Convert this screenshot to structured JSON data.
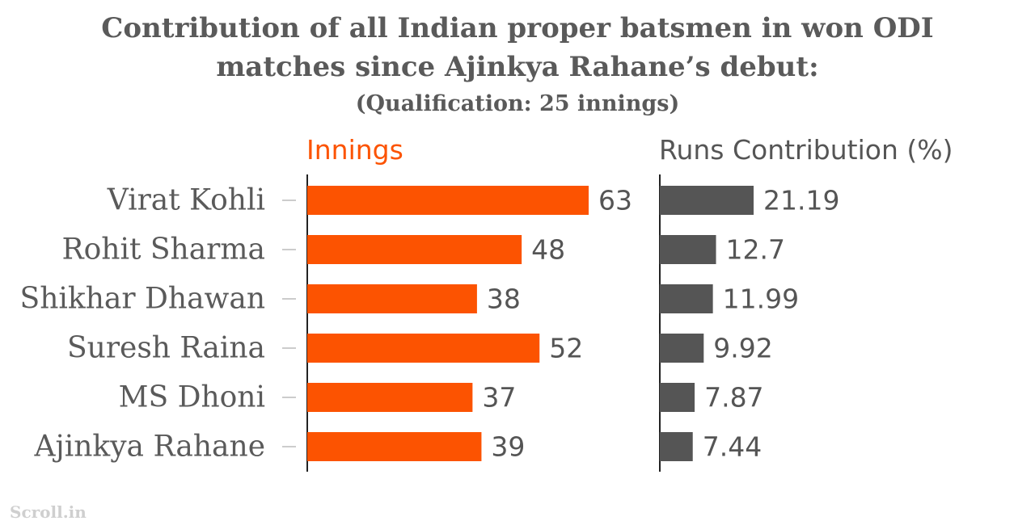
{
  "title_line1": "Contribution of all Indian proper batsmen in won ODI",
  "title_line2": "matches since Ajinkya Rahane’s debut:",
  "subtitle": "(Qualification: 25 innings)",
  "source": "Scroll.in",
  "colors": {
    "innings": "#fc5301",
    "runs": "#555555",
    "text": "#5a5a5a",
    "value_text": "#555555"
  },
  "chart_data": {
    "type": "bar",
    "orientation": "horizontal",
    "categories": [
      "Virat Kohli",
      "Rohit Sharma",
      "Shikhar Dhawan",
      "Suresh Raina",
      "MS Dhoni",
      "Ajinkya Rahane"
    ],
    "series": [
      {
        "name": "Innings",
        "values": [
          63,
          48,
          38,
          52,
          37,
          39
        ]
      },
      {
        "name": "Runs Contribution (%)",
        "values": [
          "21.19",
          "12.7",
          "11.99",
          "9.92",
          "7.87",
          "7.44"
        ]
      }
    ],
    "grid": false,
    "legend": "column headers above bars"
  }
}
